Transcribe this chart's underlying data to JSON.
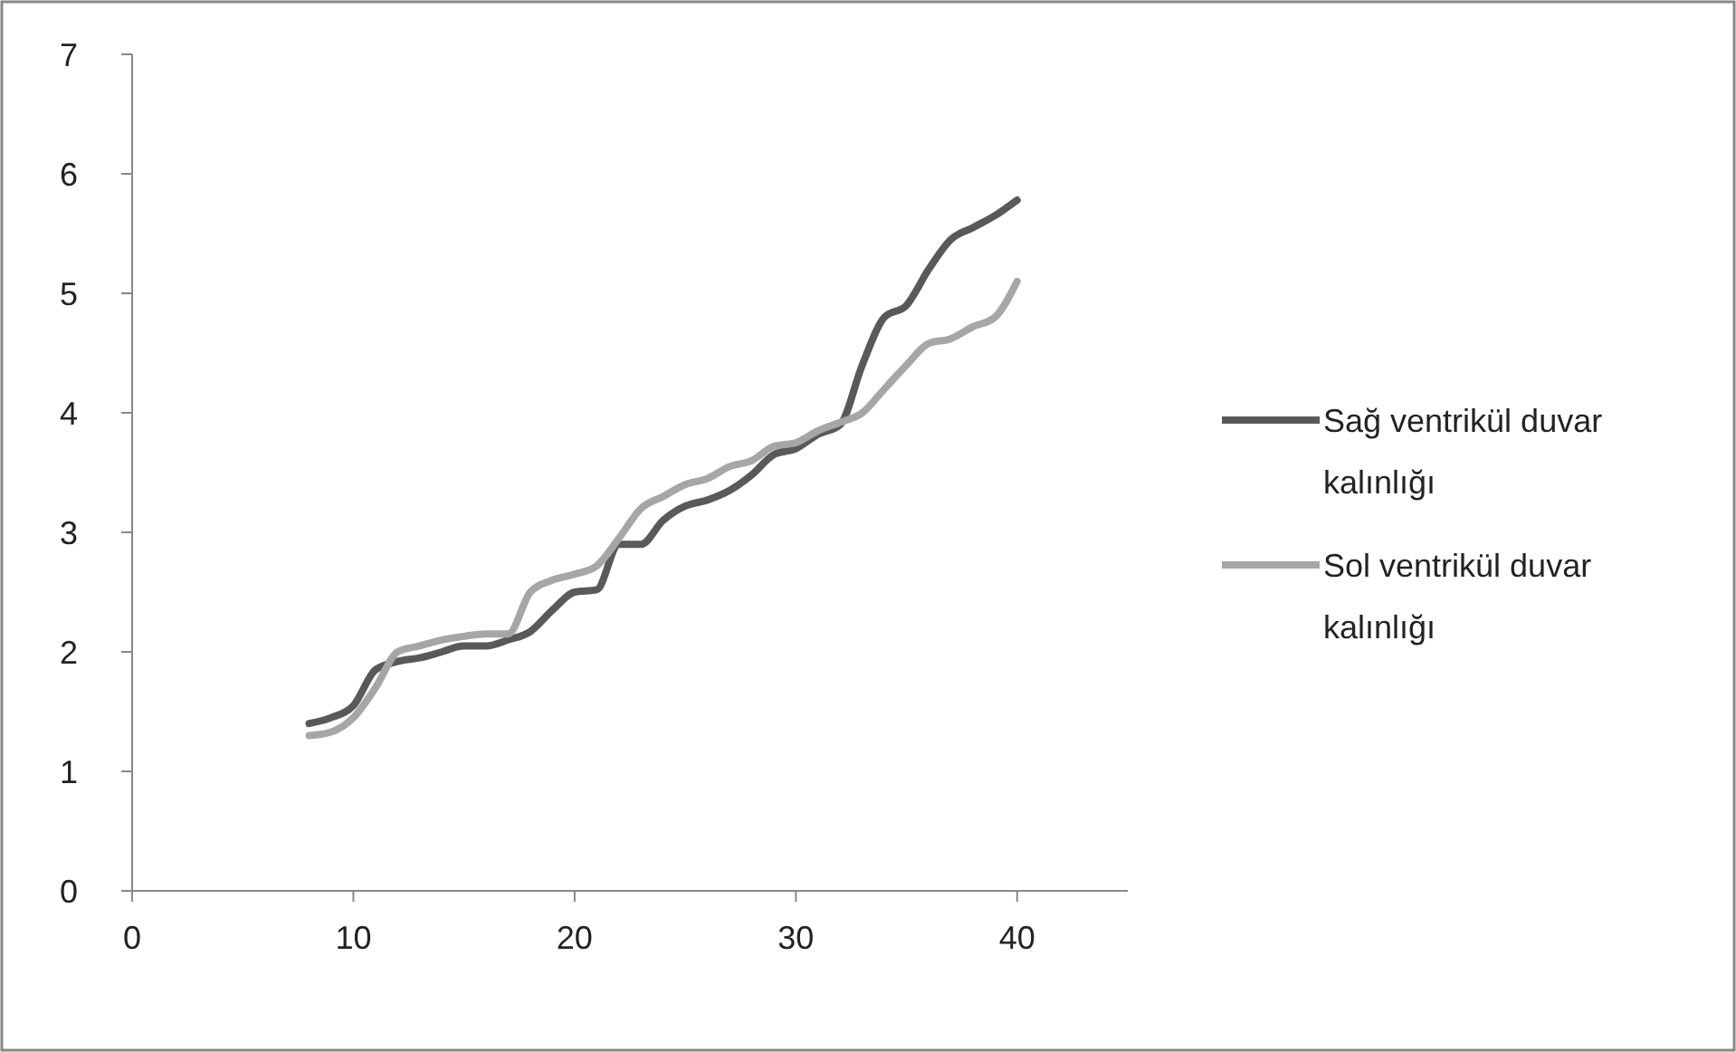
{
  "chart_data": {
    "type": "line",
    "x": [
      8,
      9,
      10,
      11,
      12,
      13,
      14,
      15,
      16,
      17,
      18,
      19,
      20,
      21,
      22,
      23,
      24,
      25,
      26,
      27,
      28,
      29,
      30,
      31,
      32,
      33,
      34,
      35,
      36,
      37,
      38,
      39,
      40
    ],
    "series": [
      {
        "name": "Sağ ventrikül duvar kalınlığı",
        "color": "#595959",
        "values": [
          1.4,
          1.45,
          1.55,
          1.85,
          1.92,
          1.95,
          2.0,
          2.05,
          2.05,
          2.1,
          2.17,
          2.35,
          2.5,
          2.52,
          2.9,
          2.9,
          3.1,
          3.22,
          3.27,
          3.35,
          3.48,
          3.65,
          3.7,
          3.82,
          3.9,
          4.4,
          4.8,
          4.9,
          5.2,
          5.45,
          5.55,
          5.65,
          5.78
        ]
      },
      {
        "name": "Sol ventrikül duvar kalınlığı",
        "color": "#a6a6a6",
        "values": [
          1.3,
          1.33,
          1.45,
          1.7,
          2.0,
          2.05,
          2.1,
          2.13,
          2.15,
          2.15,
          2.5,
          2.6,
          2.65,
          2.72,
          2.95,
          3.2,
          3.3,
          3.4,
          3.45,
          3.55,
          3.6,
          3.72,
          3.75,
          3.85,
          3.92,
          4.0,
          4.2,
          4.4,
          4.58,
          4.62,
          4.72,
          4.8,
          5.1
        ]
      }
    ],
    "xlim": [
      0,
      45
    ],
    "xticks": [
      0,
      10,
      20,
      30,
      40
    ],
    "ylim": [
      0,
      7
    ],
    "yticks": [
      0,
      1,
      2,
      3,
      4,
      5,
      6,
      7
    ],
    "grid": false,
    "legend": "right",
    "marker": "none",
    "line_style": "solid"
  }
}
